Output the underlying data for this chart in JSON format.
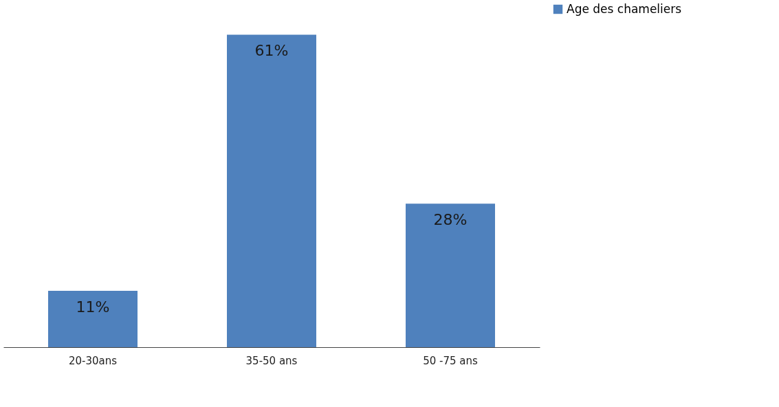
{
  "chart_data": {
    "type": "bar",
    "categories": [
      "20-30ans",
      "35-50 ans",
      "50 -75 ans"
    ],
    "series": [
      {
        "name": "Age des chameliers",
        "color": "#4f81bd",
        "values": [
          11,
          61,
          28
        ],
        "value_labels": [
          "11%",
          "61%",
          "28%"
        ]
      }
    ],
    "legend": "right",
    "grid": false,
    "tick_labels": "x"
  }
}
